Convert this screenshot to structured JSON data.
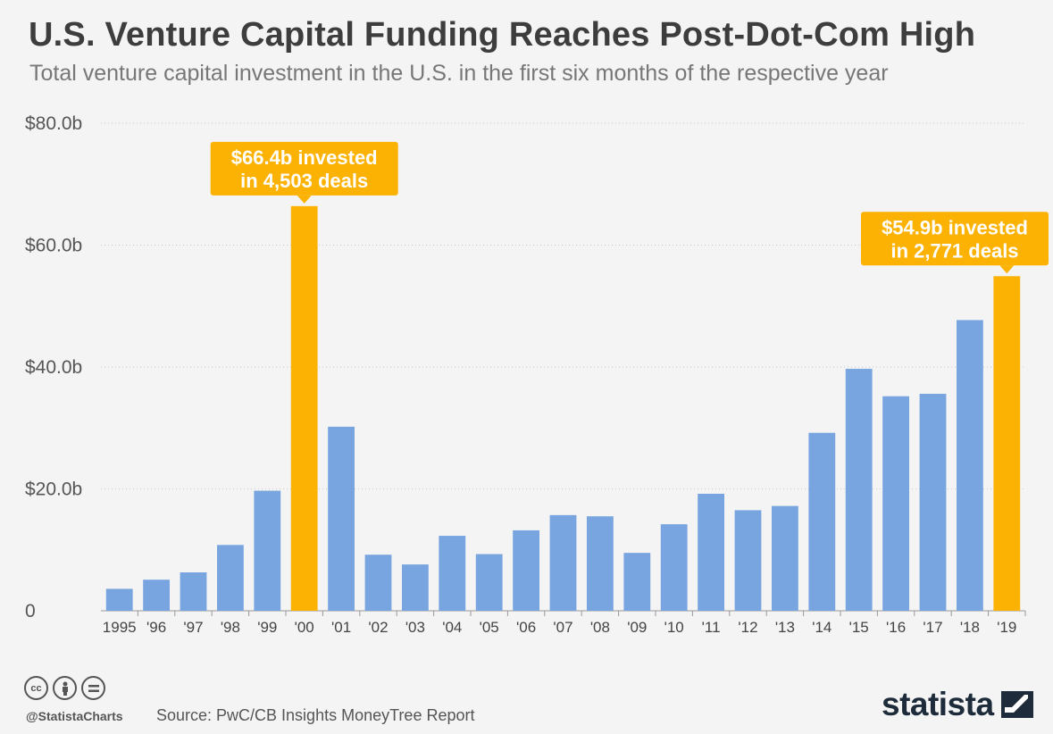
{
  "header": {
    "title": "U.S. Venture Capital Funding Reaches Post-Dot-Com High",
    "subtitle": "Total venture capital investment in the U.S. in the first six months of the respective year"
  },
  "chart_data": {
    "type": "bar",
    "title": "U.S. Venture Capital Funding Reaches Post-Dot-Com High",
    "subtitle": "Total venture capital investment in the U.S. in the first six months of the respective year",
    "xlabel": "",
    "ylabel": "",
    "ylim": [
      0,
      80
    ],
    "yticks": [
      0,
      20,
      40,
      60,
      80
    ],
    "ytick_labels": [
      "0",
      "$20.0b",
      "$40.0b",
      "$60.0b",
      "$80.0b"
    ],
    "categories": [
      "1995",
      "'96",
      "'97",
      "'98",
      "'99",
      "'00",
      "'01",
      "'02",
      "'03",
      "'04",
      "'05",
      "'06",
      "'07",
      "'08",
      "'09",
      "'10",
      "'11",
      "'12",
      "'13",
      "'14",
      "'15",
      "'16",
      "'17",
      "'18",
      "'19"
    ],
    "values": [
      3.6,
      5.1,
      6.3,
      10.8,
      19.7,
      66.4,
      30.2,
      9.2,
      7.6,
      12.3,
      9.3,
      13.2,
      15.7,
      15.5,
      9.5,
      14.2,
      19.2,
      16.5,
      17.2,
      29.2,
      39.7,
      35.2,
      35.6,
      47.7,
      54.9
    ],
    "highlighted": [
      "'00",
      "'19"
    ],
    "colors": {
      "default": "#78a5e0",
      "highlight": "#fbb203"
    },
    "grid": true,
    "annotations": [
      {
        "category": "'00",
        "line1": "$66.4b invested",
        "line2": "in 4,503 deals"
      },
      {
        "category": "'19",
        "line1": "$54.9b invested",
        "line2": "in 2,771 deals"
      }
    ]
  },
  "footer": {
    "handle": "@StatistaCharts",
    "source": "Source: PwC/CB Insights MoneyTree Report",
    "brand": "statista",
    "license_icons": [
      "cc-icon",
      "attribution-icon",
      "no-derivatives-icon"
    ]
  }
}
